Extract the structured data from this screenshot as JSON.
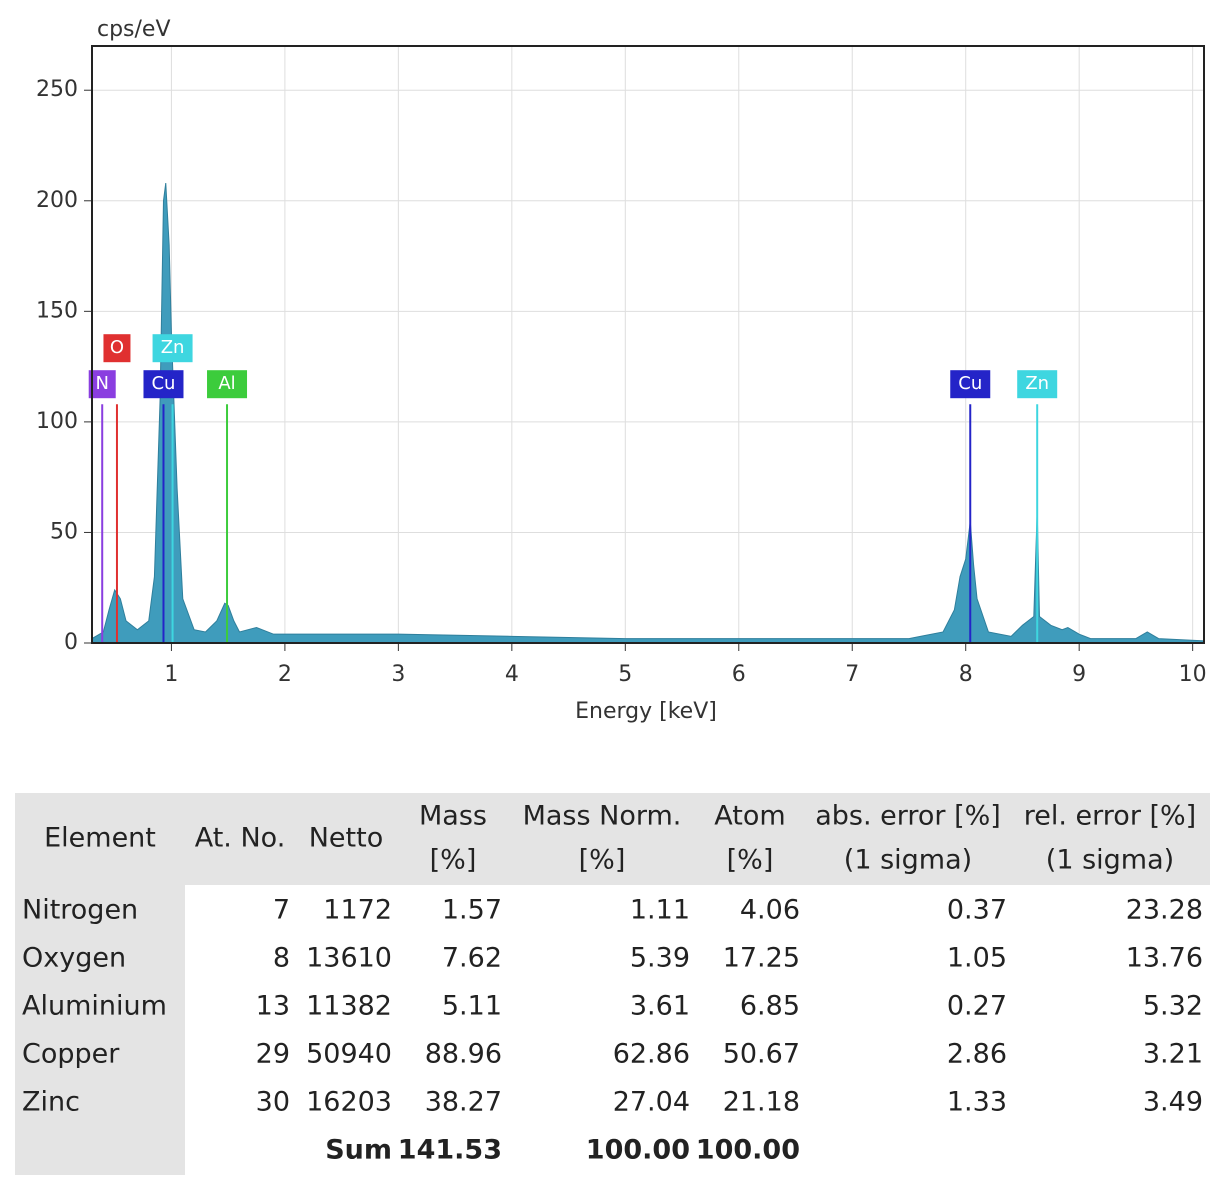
{
  "chart_data": {
    "type": "spectrum",
    "ylabel": "cps/eV",
    "xlabel": "Energy [keV]",
    "xlim": [
      0.3,
      10.1
    ],
    "xticks": [
      1,
      2,
      3,
      4,
      5,
      6,
      7,
      8,
      9,
      10
    ],
    "ylim": [
      0,
      270
    ],
    "yticks": [
      0,
      50,
      100,
      150,
      200,
      250
    ],
    "grid": true,
    "color": "#3f9cbc",
    "x": [
      0.3,
      0.4,
      0.45,
      0.5,
      0.55,
      0.6,
      0.7,
      0.8,
      0.85,
      0.9,
      0.93,
      0.95,
      0.98,
      1.0,
      1.05,
      1.1,
      1.2,
      1.3,
      1.4,
      1.47,
      1.5,
      1.55,
      1.6,
      1.75,
      1.9,
      2.5,
      3,
      4,
      5,
      6,
      7,
      7.5,
      7.8,
      7.9,
      7.95,
      8.0,
      8.04,
      8.07,
      8.1,
      8.2,
      8.4,
      8.5,
      8.6,
      8.63,
      8.65,
      8.75,
      8.85,
      8.9,
      9.0,
      9.1,
      9.5,
      9.6,
      9.7,
      10.1
    ],
    "values": [
      2,
      5,
      15,
      24,
      20,
      10,
      6,
      10,
      30,
      110,
      200,
      208,
      180,
      140,
      70,
      20,
      6,
      5,
      10,
      18,
      17,
      10,
      5,
      7,
      4,
      4,
      4,
      3,
      2,
      2,
      2,
      2,
      5,
      15,
      30,
      38,
      55,
      35,
      20,
      5,
      3,
      8,
      12,
      60,
      12,
      8,
      6,
      7,
      4,
      2,
      2,
      5,
      2,
      1
    ],
    "markers": [
      {
        "label": "N",
        "x": 0.39,
        "height": 108,
        "color": "#8a3ee0"
      },
      {
        "label": "O",
        "x": 0.52,
        "height": 108,
        "color": "#e03030"
      },
      {
        "label": "Cu",
        "x": 0.93,
        "height": 108,
        "color": "#2424c8"
      },
      {
        "label": "Zn",
        "x": 1.01,
        "height": 108,
        "color": "#3ed6e0"
      },
      {
        "label": "Al",
        "x": 1.49,
        "height": 108,
        "color": "#3ccc3c"
      },
      {
        "label": "Cu",
        "x": 8.04,
        "height": 108,
        "color": "#2424c8"
      },
      {
        "label": "Zn",
        "x": 8.63,
        "height": 108,
        "color": "#3ed6e0"
      }
    ]
  },
  "table": {
    "header": [
      [
        "Element"
      ],
      [
        "At. No."
      ],
      [
        "Netto"
      ],
      [
        "Mass",
        "[%]"
      ],
      [
        "Mass Norm.",
        "[%]"
      ],
      [
        "Atom",
        "[%]"
      ],
      [
        "abs. error [%]",
        "(1 sigma)"
      ],
      [
        "rel. error [%]",
        "(1 sigma)"
      ]
    ],
    "rows": [
      [
        "Nitrogen",
        "7",
        "1172",
        "1.57",
        "1.11",
        "4.06",
        "0.37",
        "23.28"
      ],
      [
        "Oxygen",
        "8",
        "13610",
        "7.62",
        "5.39",
        "17.25",
        "1.05",
        "13.76"
      ],
      [
        "Aluminium",
        "13",
        "11382",
        "5.11",
        "3.61",
        "6.85",
        "0.27",
        "5.32"
      ],
      [
        "Copper",
        "29",
        "50940",
        "88.96",
        "62.86",
        "50.67",
        "2.86",
        "3.21"
      ],
      [
        "Zinc",
        "30",
        "16203",
        "38.27",
        "27.04",
        "21.18",
        "1.33",
        "3.49"
      ]
    ],
    "sum": {
      "label": "Sum",
      "values": [
        "141.53",
        "100.00",
        "100.00"
      ]
    }
  }
}
